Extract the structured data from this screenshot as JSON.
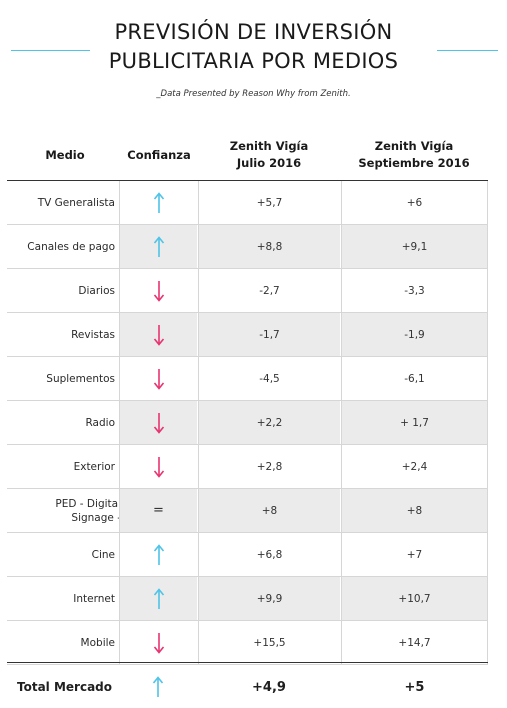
{
  "title_line1": "PREVISIÓN DE INVERSIÓN",
  "title_line2": "PUBLICITARIA POR MEDIOS",
  "subtitle": "_Data Presented by Reason Why from Zenith.",
  "headers": {
    "medio": "Medio",
    "confianza": "Confianza",
    "julio_line1": "Zenith Vigía",
    "julio_line2": "Julio 2016",
    "sept_line1": "Zenith Vigía",
    "sept_line2": "Septiembre 2016"
  },
  "colors": {
    "up": "#4fc3e8",
    "down": "#e8336f",
    "rule": "#4fc3e8"
  },
  "rows": [
    {
      "medio": "TV Generalista",
      "trend": "up",
      "julio": "+5,7",
      "sept": "+6"
    },
    {
      "medio": "Canales de pago",
      "trend": "up",
      "julio": "+8,8",
      "sept": "+9,1"
    },
    {
      "medio": "Diarios",
      "trend": "down",
      "julio": "-2,7",
      "sept": "-3,3"
    },
    {
      "medio": "Revistas",
      "trend": "down",
      "julio": "-1,7",
      "sept": "-1,9"
    },
    {
      "medio": "Suplementos",
      "trend": "down",
      "julio": "-4,5",
      "sept": "-6,1"
    },
    {
      "medio": "Radio",
      "trend": "down",
      "julio": "+2,2",
      "sept": "+ 1,7"
    },
    {
      "medio": "Exterior",
      "trend": "down",
      "julio": "+2,8",
      "sept": "+2,4"
    },
    {
      "medio": "PED - Digital Signage -",
      "trend": "equal",
      "equal_symbol": "=",
      "julio": "+8",
      "sept": "+8"
    },
    {
      "medio": "Cine",
      "trend": "up",
      "julio": "+6,8",
      "sept": "+7"
    },
    {
      "medio": "Internet",
      "trend": "up",
      "julio": "+9,9",
      "sept": "+10,7"
    },
    {
      "medio": "Mobile",
      "trend": "down",
      "julio": "+15,5",
      "sept": "+14,7"
    }
  ],
  "total": {
    "medio": "Total Mercado",
    "trend": "up",
    "julio": "+4,9",
    "sept": "+5"
  }
}
